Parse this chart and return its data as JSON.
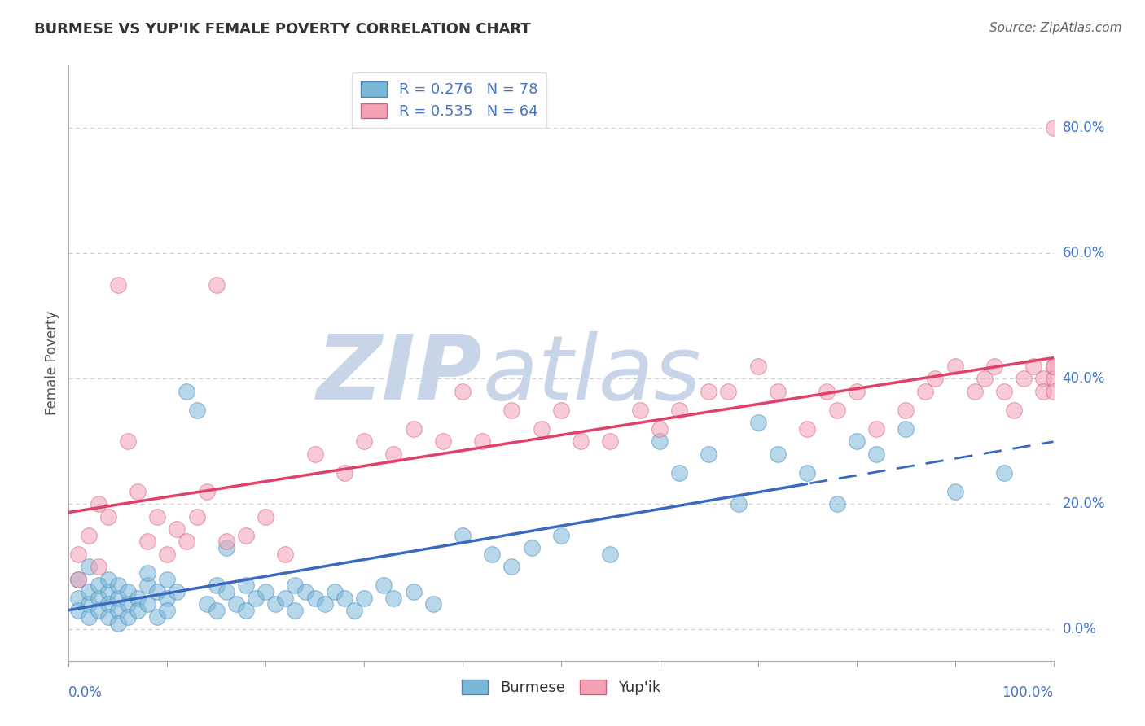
{
  "title": "BURMESE VS YUP'IK FEMALE POVERTY CORRELATION CHART",
  "source": "Source: ZipAtlas.com",
  "ylabel": "Female Poverty",
  "burmese_R": 0.276,
  "burmese_N": 78,
  "yupik_R": 0.535,
  "yupik_N": 64,
  "burmese_color": "#7ab8d9",
  "yupik_color": "#f4a0b5",
  "burmese_edge_color": "#4a88b9",
  "yupik_edge_color": "#d06080",
  "burmese_line_color": "#3a6abf",
  "yupik_line_color": "#e0406a",
  "title_color": "#333333",
  "axis_label_color": "#4472c4",
  "watermark_zip_color": "#c8d4e8",
  "watermark_atlas_color": "#c8d4e8",
  "grid_color": "#c8c8c8",
  "burmese_x": [
    1,
    1,
    1,
    2,
    2,
    2,
    2,
    3,
    3,
    3,
    4,
    4,
    4,
    4,
    5,
    5,
    5,
    5,
    6,
    6,
    6,
    7,
    7,
    8,
    8,
    8,
    9,
    9,
    10,
    10,
    10,
    11,
    12,
    13,
    14,
    15,
    15,
    16,
    16,
    17,
    18,
    18,
    19,
    20,
    21,
    22,
    23,
    23,
    24,
    25,
    26,
    27,
    28,
    29,
    30,
    32,
    33,
    35,
    37,
    40,
    43,
    45,
    47,
    50,
    55,
    60,
    62,
    65,
    68,
    70,
    72,
    75,
    78,
    80,
    82,
    85,
    90,
    95
  ],
  "burmese_y": [
    5,
    3,
    8,
    4,
    6,
    10,
    2,
    5,
    7,
    3,
    6,
    4,
    8,
    2,
    5,
    3,
    7,
    1,
    4,
    6,
    2,
    5,
    3,
    7,
    4,
    9,
    6,
    2,
    5,
    8,
    3,
    6,
    38,
    35,
    4,
    7,
    3,
    6,
    13,
    4,
    7,
    3,
    5,
    6,
    4,
    5,
    7,
    3,
    6,
    5,
    4,
    6,
    5,
    3,
    5,
    7,
    5,
    6,
    4,
    15,
    12,
    10,
    13,
    15,
    12,
    30,
    25,
    28,
    20,
    33,
    28,
    25,
    20,
    30,
    28,
    32,
    22,
    25
  ],
  "yupik_x": [
    1,
    1,
    2,
    3,
    3,
    4,
    5,
    6,
    7,
    8,
    9,
    10,
    11,
    12,
    13,
    14,
    15,
    16,
    18,
    20,
    22,
    25,
    28,
    30,
    33,
    35,
    38,
    40,
    42,
    45,
    48,
    50,
    52,
    55,
    58,
    60,
    62,
    65,
    67,
    70,
    72,
    75,
    77,
    78,
    80,
    82,
    85,
    87,
    88,
    90,
    92,
    93,
    94,
    95,
    96,
    97,
    98,
    99,
    99,
    100,
    100,
    100,
    100,
    100
  ],
  "yupik_y": [
    8,
    12,
    15,
    20,
    10,
    18,
    55,
    30,
    22,
    14,
    18,
    12,
    16,
    14,
    18,
    22,
    55,
    14,
    15,
    18,
    12,
    28,
    25,
    30,
    28,
    32,
    30,
    38,
    30,
    35,
    32,
    35,
    30,
    30,
    35,
    32,
    35,
    38,
    38,
    42,
    38,
    32,
    38,
    35,
    38,
    32,
    35,
    38,
    40,
    42,
    38,
    40,
    42,
    38,
    35,
    40,
    42,
    40,
    38,
    42,
    40,
    38,
    42,
    80
  ],
  "xlim": [
    0,
    100
  ],
  "ylim": [
    -5,
    90
  ],
  "ytick_vals": [
    0,
    20,
    40,
    60,
    80
  ],
  "ytick_labels": [
    "0.0%",
    "20.0%",
    "40.0%",
    "60.0%",
    "80.0%"
  ],
  "dashed_start_x": 75,
  "background_color": "#ffffff"
}
